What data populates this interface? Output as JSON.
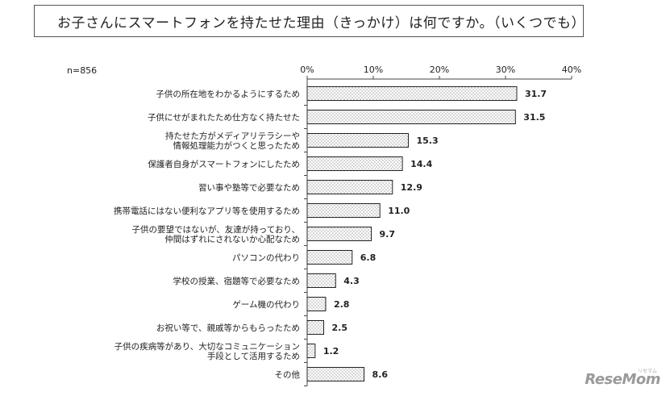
{
  "title": "お子さんにスマートフォンを持たせた理由（きっかけ）は何ですか。（いくつでも）",
  "chart_data": {
    "type": "bar",
    "orientation": "horizontal",
    "sample_label": "n=856",
    "categories": [
      [
        "子供の所在地をわかるようにするため"
      ],
      [
        "子供にせがまれたため仕方なく持たせた"
      ],
      [
        "持たせた方がメディアリテラシーや",
        "情報処理能力がつくと思ったため"
      ],
      [
        "保護者自身がスマートフォンにしたため"
      ],
      [
        "習い事や塾等で必要なため"
      ],
      [
        "携帯電話にはない便利なアプリ等を使用するため"
      ],
      [
        "子供の要望ではないが、友達が持っており、",
        "仲間はずれにされないか心配なため"
      ],
      [
        "パソコンの代わり"
      ],
      [
        "学校の授業、宿題等で必要なため"
      ],
      [
        "ゲーム機の代わり"
      ],
      [
        "お祝い等で、親戚等からもらったため"
      ],
      [
        "子供の疾病等があり、大切なコミュニケーション",
        "手段として活用するため"
      ],
      [
        "その他"
      ]
    ],
    "values": [
      31.7,
      31.5,
      15.3,
      14.4,
      12.9,
      11.0,
      9.7,
      6.8,
      4.3,
      2.8,
      2.5,
      1.2,
      8.6
    ],
    "value_labels": [
      "31.7",
      "31.5",
      "15.3",
      "14.4",
      "12.9",
      "11.0",
      "9.7",
      "6.8",
      "4.3",
      "2.8",
      "2.5",
      "1.2",
      "8.6"
    ],
    "xlim": [
      0,
      40
    ],
    "ticks": [
      0,
      10,
      20,
      30,
      40
    ],
    "tick_labels": [
      "0%",
      "10%",
      "20%",
      "30%",
      "40%"
    ],
    "axis_position": "top",
    "grid": false,
    "bar_fill": "dotted",
    "bar_color": "#ffffff",
    "bar_stroke": "#222222"
  },
  "watermark": {
    "text": "ReseMom",
    "subtext": "リセマム"
  }
}
